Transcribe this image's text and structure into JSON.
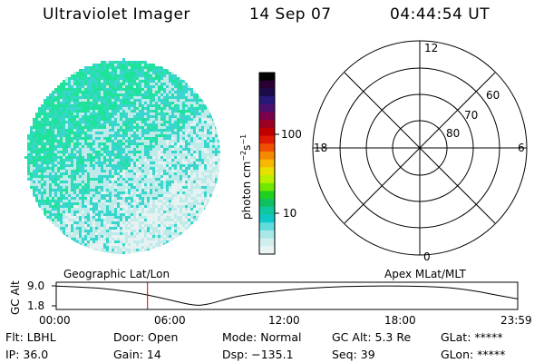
{
  "header": {
    "instrument": "Ultraviolet Imager",
    "date": "14 Sep 07",
    "time": "04:44:54 UT"
  },
  "image": {
    "colors": {
      "dense": "#1fe39a",
      "mid": "#38d6cc",
      "light": "#bfeaea",
      "faint": "#e6f2f2"
    }
  },
  "colorbar": {
    "label": "photon cm",
    "label_sup1": "−2",
    "label_s": "s",
    "label_sup2": "−1",
    "tick_100": "100",
    "tick_10": "10",
    "colors": [
      "#000000",
      "#2a0033",
      "#1c0b4a",
      "#26197a",
      "#4b0f6e",
      "#7a004a",
      "#9c0020",
      "#c00000",
      "#e01a00",
      "#f05000",
      "#f58a00",
      "#f6b800",
      "#e8e000",
      "#b8f000",
      "#70e800",
      "#20d020",
      "#10c060",
      "#10c8a0",
      "#10c8c8",
      "#60dcdc",
      "#a8e8e8",
      "#d0eeee",
      "#e8f4f4"
    ]
  },
  "polar": {
    "mlt_12": "12",
    "mlt_18": "18",
    "mlt_6": "6",
    "mlt_0": "0",
    "lat_60": "60",
    "lat_70": "70",
    "lat_80": "80"
  },
  "timeline": {
    "label_geo": "Geographic Lat/Lon",
    "label_apex": "Apex  MLat/MLT",
    "y_label": "GC Alt",
    "y_ticks": [
      "9.0",
      "1.8"
    ],
    "x_ticks": [
      "00:00",
      "06:00",
      "12:00",
      "18:00",
      "23:59"
    ],
    "current_time_fraction": 0.1978,
    "marker_color": "#cc0000",
    "altitude_hours": [
      0,
      2,
      4,
      5.5,
      6.5,
      7.3,
      8,
      9,
      10,
      12,
      14,
      16,
      18,
      20,
      21,
      22,
      23,
      23.98
    ],
    "altitude_values": [
      8.9,
      8.4,
      6.8,
      4.6,
      2.9,
      1.8,
      2.5,
      4.6,
      6.0,
      7.6,
      8.5,
      8.95,
      9.0,
      8.6,
      7.9,
      6.9,
      5.5,
      4.3
    ],
    "altitude_range": [
      1.8,
      9.0
    ]
  },
  "footer": {
    "flt": "Flt: LBHL",
    "ip": "IP: 36.0",
    "door": "Door: Open",
    "gain": "Gain: 14",
    "mode": "Mode: Normal",
    "dsp": "Dsp: −135.1",
    "gc_alt": "GC Alt: 5.3 Re",
    "seq": "Seq: 39",
    "glat": "GLat: *****",
    "glon": "GLon: *****"
  }
}
